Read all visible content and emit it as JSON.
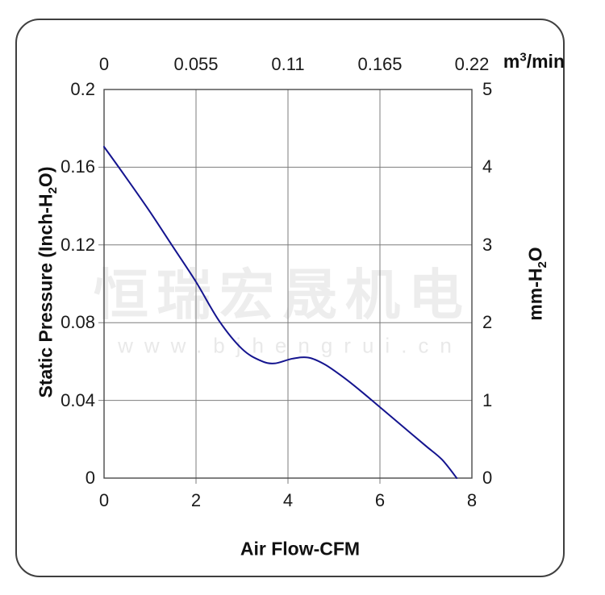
{
  "watermark": {
    "company_cn": "恒瑞宏晟机电",
    "website": "www.bjhengrui.cn",
    "company_color": "#ededed",
    "website_color": "#e9e9e9"
  },
  "colors": {
    "curve": "#14148f",
    "grid": "#7d7d7d",
    "plot_border": "#4a4a4a",
    "frame_border": "#3f3f3f",
    "text": "#1a1a1a"
  },
  "chart_data": {
    "type": "line",
    "grid": true,
    "x_bottom": {
      "label": "Air Flow-CFM",
      "ticks": [
        "0",
        "2",
        "4",
        "6",
        "8"
      ],
      "range": [
        0,
        8
      ]
    },
    "x_top": {
      "label": "m³/min",
      "unit_parts": {
        "pre": "m",
        "sup": "3",
        "post": "/min"
      },
      "ticks": [
        "0",
        "0.055",
        "0.11",
        "0.165",
        "0.22"
      ],
      "range": [
        0,
        0.22
      ]
    },
    "y_left": {
      "label": "Static Pressure (Inch-H₂O)",
      "label_parts": {
        "pre": "Static Pressure (Inch-H",
        "sub": "2",
        "post": "O)"
      },
      "ticks": [
        "0.2",
        "0.16",
        "0.12",
        "0.08",
        "0.04",
        "0"
      ],
      "range": [
        0,
        0.2
      ]
    },
    "y_right": {
      "label": "mm-H₂O",
      "label_parts": {
        "pre": "mm-H",
        "sub": "2",
        "post": "O"
      },
      "ticks": [
        "5",
        "4",
        "3",
        "2",
        "1",
        "0"
      ],
      "range": [
        0,
        5
      ]
    },
    "series": [
      {
        "name": "static-pressure-vs-airflow",
        "color": "#14148f",
        "points_cfm_inchH2O": [
          [
            0,
            0.1705
          ],
          [
            0.5,
            0.154
          ],
          [
            1.0,
            0.137
          ],
          [
            1.5,
            0.119
          ],
          [
            2.0,
            0.101
          ],
          [
            2.5,
            0.081
          ],
          [
            3.0,
            0.0665
          ],
          [
            3.4,
            0.0605
          ],
          [
            3.7,
            0.059
          ],
          [
            4.1,
            0.0615
          ],
          [
            4.45,
            0.062
          ],
          [
            4.8,
            0.0585
          ],
          [
            5.2,
            0.052
          ],
          [
            5.6,
            0.0445
          ],
          [
            6.0,
            0.0365
          ],
          [
            6.5,
            0.0265
          ],
          [
            7.0,
            0.0165
          ],
          [
            7.35,
            0.0095
          ],
          [
            7.67,
            0
          ]
        ]
      }
    ]
  }
}
